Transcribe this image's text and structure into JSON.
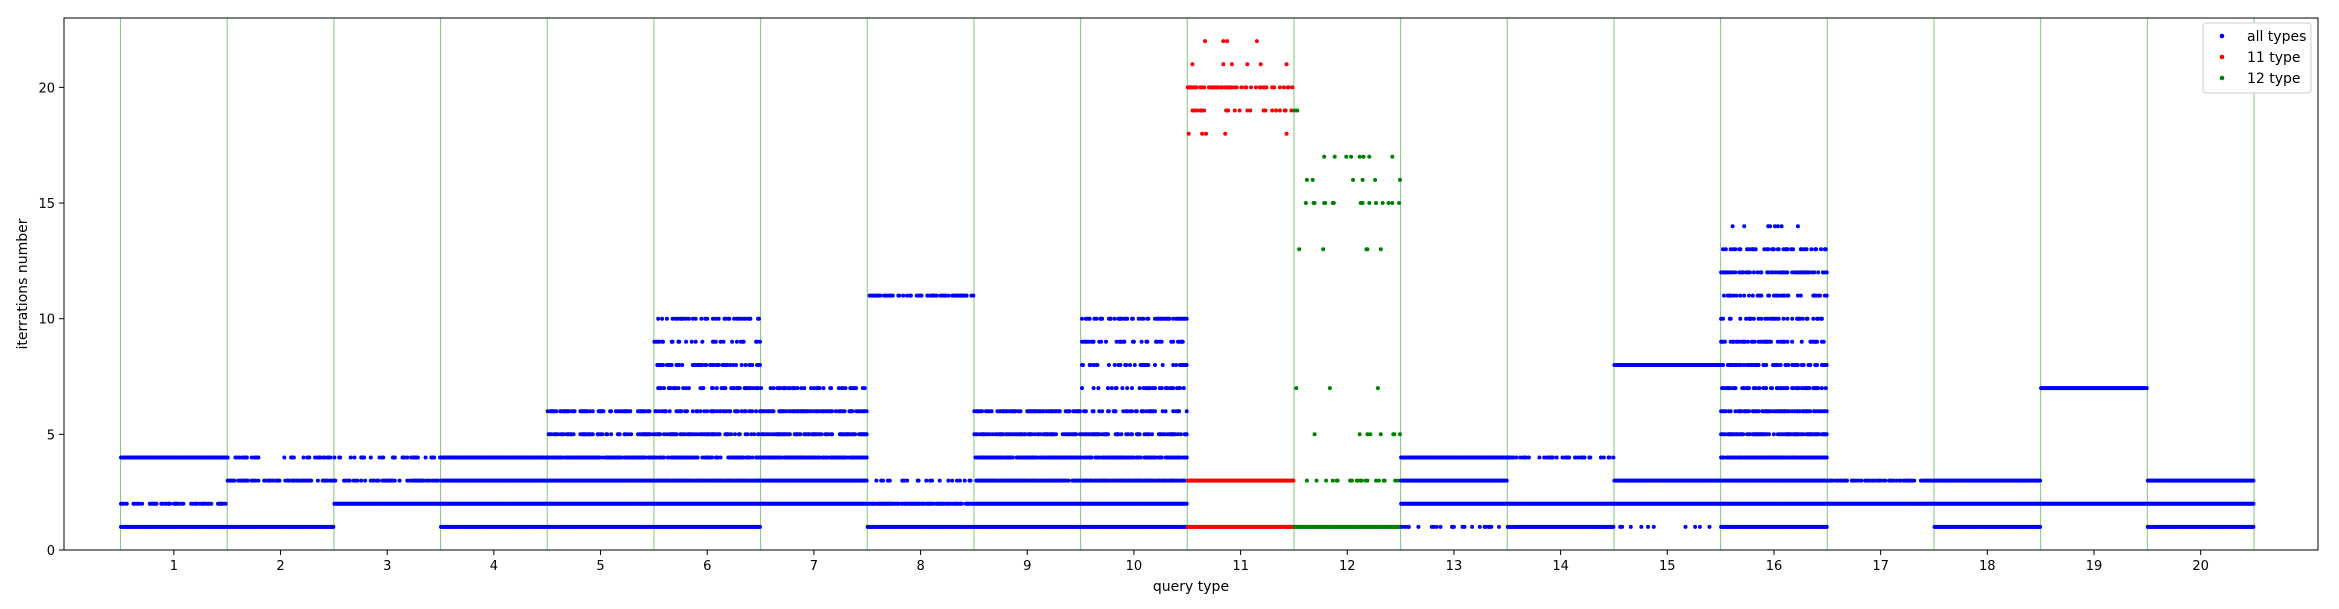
{
  "chart_data": {
    "type": "scatter",
    "title": "",
    "xlabel": "query type",
    "ylabel": "iterrations number",
    "xlim": [
      -0.03,
      21.1
    ],
    "ylim": [
      0,
      23
    ],
    "x_ticks": [
      1,
      2,
      3,
      4,
      5,
      6,
      7,
      8,
      9,
      10,
      11,
      12,
      13,
      14,
      15,
      16,
      17,
      18,
      19,
      20
    ],
    "y_ticks": [
      0,
      5,
      10,
      15,
      20
    ],
    "separators": [
      0.5,
      1.5,
      2.5,
      3.5,
      4.5,
      5.5,
      6.5,
      7.5,
      8.5,
      9.5,
      10.5,
      11.5,
      12.5,
      13.5,
      14.5,
      15.5,
      16.5,
      17.5,
      18.5,
      19.5,
      20.5
    ],
    "separator_color": "#7fc97f",
    "grid": false,
    "legend_position": "top-right",
    "series": [
      {
        "name": "all types",
        "color": "#0000ff"
      },
      {
        "name": "11 type",
        "color": "#ff0000"
      },
      {
        "name": "12 type",
        "color": "#008000"
      }
    ],
    "query_types": [
      {
        "type": 1,
        "levels": [
          [
            1,
            1.0
          ],
          [
            2,
            0.5
          ],
          [
            4,
            1.0
          ]
        ]
      },
      {
        "type": 2,
        "levels": [
          [
            1,
            1.0
          ],
          [
            3,
            0.6
          ],
          [
            4,
            0.3
          ]
        ]
      },
      {
        "type": 3,
        "levels": [
          [
            2,
            1.0
          ],
          [
            3,
            0.5
          ],
          [
            4,
            0.3
          ]
        ]
      },
      {
        "type": 4,
        "levels": [
          [
            1,
            1.0
          ],
          [
            2,
            1.0
          ],
          [
            3,
            1.0
          ],
          [
            4,
            1.0
          ]
        ]
      },
      {
        "type": 5,
        "levels": [
          [
            1,
            1.0
          ],
          [
            2,
            1.0
          ],
          [
            3,
            1.0
          ],
          [
            4,
            0.8
          ],
          [
            5,
            0.5
          ],
          [
            6,
            0.5
          ]
        ]
      },
      {
        "type": 6,
        "levels": [
          [
            1,
            1.0
          ],
          [
            2,
            1.0
          ],
          [
            3,
            0.9
          ],
          [
            4,
            0.6
          ],
          [
            5,
            0.5
          ],
          [
            6,
            0.4
          ],
          [
            7,
            0.3
          ],
          [
            8,
            0.4
          ],
          [
            9,
            0.3
          ],
          [
            10,
            0.4
          ]
        ]
      },
      {
        "type": 7,
        "levels": [
          [
            2,
            1.0
          ],
          [
            3,
            1.0
          ],
          [
            4,
            0.8
          ],
          [
            5,
            0.6
          ],
          [
            6,
            0.6
          ],
          [
            7,
            0.3
          ]
        ]
      },
      {
        "type": 8,
        "levels": [
          [
            1,
            1.0
          ],
          [
            2,
            0.8
          ],
          [
            3,
            0.3
          ],
          [
            11,
            0.4
          ]
        ]
      },
      {
        "type": 9,
        "levels": [
          [
            1,
            1.0
          ],
          [
            2,
            1.0
          ],
          [
            3,
            0.9
          ],
          [
            4,
            0.8
          ],
          [
            5,
            0.6
          ],
          [
            6,
            0.6
          ]
        ]
      },
      {
        "type": 10,
        "levels": [
          [
            1,
            1.0
          ],
          [
            2,
            1.0
          ],
          [
            3,
            0.8
          ],
          [
            4,
            0.6
          ],
          [
            5,
            0.5
          ],
          [
            6,
            0.4
          ],
          [
            7,
            0.3
          ],
          [
            8,
            0.3
          ],
          [
            9,
            0.3
          ],
          [
            10,
            0.4
          ]
        ]
      },
      {
        "type": 11,
        "levels": [
          [
            1,
            1.0
          ],
          [
            3,
            1.0
          ],
          [
            18,
            0.05
          ],
          [
            19,
            0.1
          ],
          [
            20,
            0.5
          ],
          [
            21,
            0.05
          ],
          [
            22,
            0.05
          ]
        ]
      },
      {
        "type": 12,
        "levels": [
          [
            1,
            1.0
          ],
          [
            3,
            0.15
          ],
          [
            5,
            0.05
          ],
          [
            7,
            0.05
          ],
          [
            13,
            0.05
          ],
          [
            15,
            0.12
          ],
          [
            16,
            0.05
          ],
          [
            17,
            0.12
          ],
          [
            19,
            0.05
          ]
        ]
      },
      {
        "type": 13,
        "levels": [
          [
            0,
            0.05
          ],
          [
            1,
            0.2
          ],
          [
            2,
            1.0
          ],
          [
            3,
            1.0
          ],
          [
            4,
            1.0
          ]
        ]
      },
      {
        "type": 14,
        "levels": [
          [
            1,
            1.0
          ],
          [
            2,
            1.0
          ],
          [
            4,
            0.3
          ]
        ]
      },
      {
        "type": 15,
        "levels": [
          [
            1,
            0.1
          ],
          [
            2,
            1.0
          ],
          [
            3,
            1.0
          ],
          [
            8,
            1.0
          ]
        ]
      },
      {
        "type": 16,
        "levels": [
          [
            1,
            1.0
          ],
          [
            2,
            1.0
          ],
          [
            3,
            1.0
          ],
          [
            4,
            0.8
          ],
          [
            5,
            0.7
          ],
          [
            6,
            0.5
          ],
          [
            7,
            0.5
          ],
          [
            8,
            0.4
          ],
          [
            9,
            0.4
          ],
          [
            10,
            0.4
          ],
          [
            11,
            0.3
          ],
          [
            12,
            0.4
          ],
          [
            13,
            0.3
          ],
          [
            14,
            0.05
          ]
        ]
      },
      {
        "type": 17,
        "levels": [
          [
            2,
            1.0
          ],
          [
            3,
            0.5
          ]
        ]
      },
      {
        "type": 18,
        "levels": [
          [
            1,
            1.0
          ],
          [
            2,
            1.0
          ],
          [
            3,
            1.0
          ]
        ]
      },
      {
        "type": 19,
        "levels": [
          [
            2,
            1.0
          ],
          [
            7,
            1.0
          ]
        ]
      },
      {
        "type": 20,
        "levels": [
          [
            1,
            1.0
          ],
          [
            2,
            1.0
          ],
          [
            3,
            1.0
          ]
        ]
      }
    ]
  }
}
